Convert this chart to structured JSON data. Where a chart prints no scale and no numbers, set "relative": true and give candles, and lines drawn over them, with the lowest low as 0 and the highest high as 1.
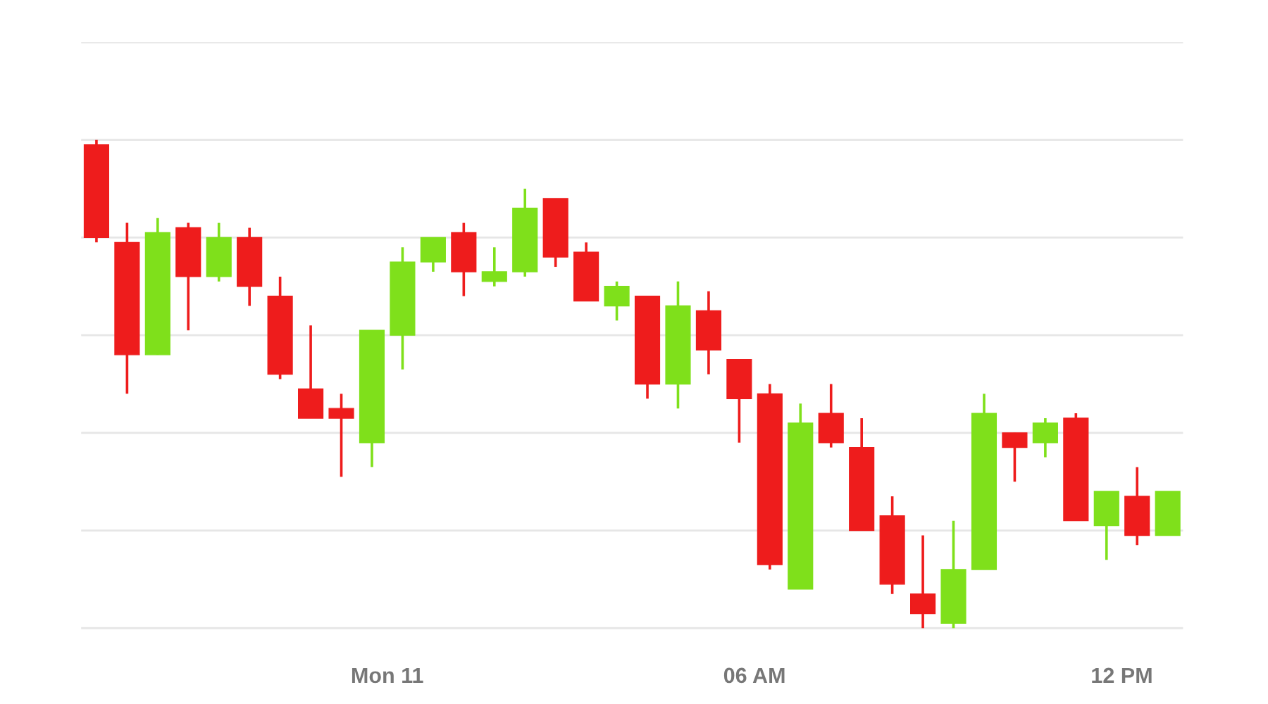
{
  "chart_data": {
    "type": "candlestick",
    "relative": true,
    "grid": "y",
    "x": [
      -4.75,
      -4.25,
      -3.75,
      -3.25,
      -2.75,
      -2.25,
      -1.75,
      -1.25,
      -0.75,
      -0.25,
      0.25,
      0.75,
      1.25,
      1.75,
      2.25,
      2.75,
      3.25,
      3.75,
      4.25,
      4.75,
      5.25,
      5.75,
      6.25,
      6.75,
      7.25,
      7.75,
      8.25,
      8.75,
      9.25,
      9.75,
      10.25,
      10.75,
      11.25,
      11.75,
      12.25,
      12.75
    ],
    "xlim": [
      -5.0,
      13.0
    ],
    "xticks": [
      {
        "value": 0,
        "label": "Mon 11"
      },
      {
        "value": 6,
        "label": "06 AM"
      },
      {
        "value": 12,
        "label": "12 PM"
      }
    ],
    "ohlc": [
      [
        0.99,
        1.0,
        0.79,
        0.8
      ],
      [
        0.79,
        0.83,
        0.48,
        0.56
      ],
      [
        0.56,
        0.84,
        0.56,
        0.81
      ],
      [
        0.82,
        0.83,
        0.61,
        0.72
      ],
      [
        0.72,
        0.83,
        0.71,
        0.8
      ],
      [
        0.8,
        0.82,
        0.66,
        0.7
      ],
      [
        0.68,
        0.72,
        0.51,
        0.52
      ],
      [
        0.49,
        0.62,
        0.43,
        0.43
      ],
      [
        0.45,
        0.48,
        0.31,
        0.43
      ],
      [
        0.38,
        0.61,
        0.33,
        0.61
      ],
      [
        0.6,
        0.78,
        0.53,
        0.75
      ],
      [
        0.75,
        0.8,
        0.73,
        0.8
      ],
      [
        0.81,
        0.83,
        0.68,
        0.73
      ],
      [
        0.71,
        0.78,
        0.7,
        0.73
      ],
      [
        0.73,
        0.9,
        0.72,
        0.86
      ],
      [
        0.88,
        0.88,
        0.74,
        0.76
      ],
      [
        0.77,
        0.79,
        0.67,
        0.67
      ],
      [
        0.66,
        0.71,
        0.63,
        0.7
      ],
      [
        0.68,
        0.68,
        0.47,
        0.5
      ],
      [
        0.5,
        0.71,
        0.45,
        0.66
      ],
      [
        0.65,
        0.69,
        0.52,
        0.57
      ],
      [
        0.55,
        0.55,
        0.38,
        0.47
      ],
      [
        0.48,
        0.5,
        0.12,
        0.13
      ],
      [
        0.08,
        0.46,
        0.08,
        0.42
      ],
      [
        0.44,
        0.5,
        0.37,
        0.38
      ],
      [
        0.37,
        0.43,
        0.2,
        0.2
      ],
      [
        0.23,
        0.27,
        0.07,
        0.09
      ],
      [
        0.07,
        0.19,
        0.0,
        0.03
      ],
      [
        0.01,
        0.22,
        0.0,
        0.12
      ],
      [
        0.12,
        0.48,
        0.12,
        0.44
      ],
      [
        0.4,
        0.4,
        0.3,
        0.37
      ],
      [
        0.38,
        0.43,
        0.35,
        0.42
      ],
      [
        0.43,
        0.44,
        0.22,
        0.22
      ],
      [
        0.21,
        0.28,
        0.14,
        0.28
      ],
      [
        0.27,
        0.33,
        0.17,
        0.19
      ],
      [
        0.19,
        0.28,
        0.19,
        0.28
      ]
    ],
    "colors": [
      "#ee1c1c",
      "#ee1c1c",
      "#7fe01b",
      "#ee1c1c",
      "#7fe01b",
      "#ee1c1c",
      "#ee1c1c",
      "#ee1c1c",
      "#ee1c1c",
      "#7fe01b",
      "#7fe01b",
      "#7fe01b",
      "#ee1c1c",
      "#7fe01b",
      "#7fe01b",
      "#ee1c1c",
      "#ee1c1c",
      "#7fe01b",
      "#ee1c1c",
      "#7fe01b",
      "#ee1c1c",
      "#ee1c1c",
      "#ee1c1c",
      "#7fe01b",
      "#ee1c1c",
      "#ee1c1c",
      "#ee1c1c",
      "#ee1c1c",
      "#7fe01b",
      "#7fe01b",
      "#ee1c1c",
      "#7fe01b",
      "#ee1c1c",
      "#7fe01b",
      "#ee1c1c",
      "#7fe01b"
    ]
  }
}
